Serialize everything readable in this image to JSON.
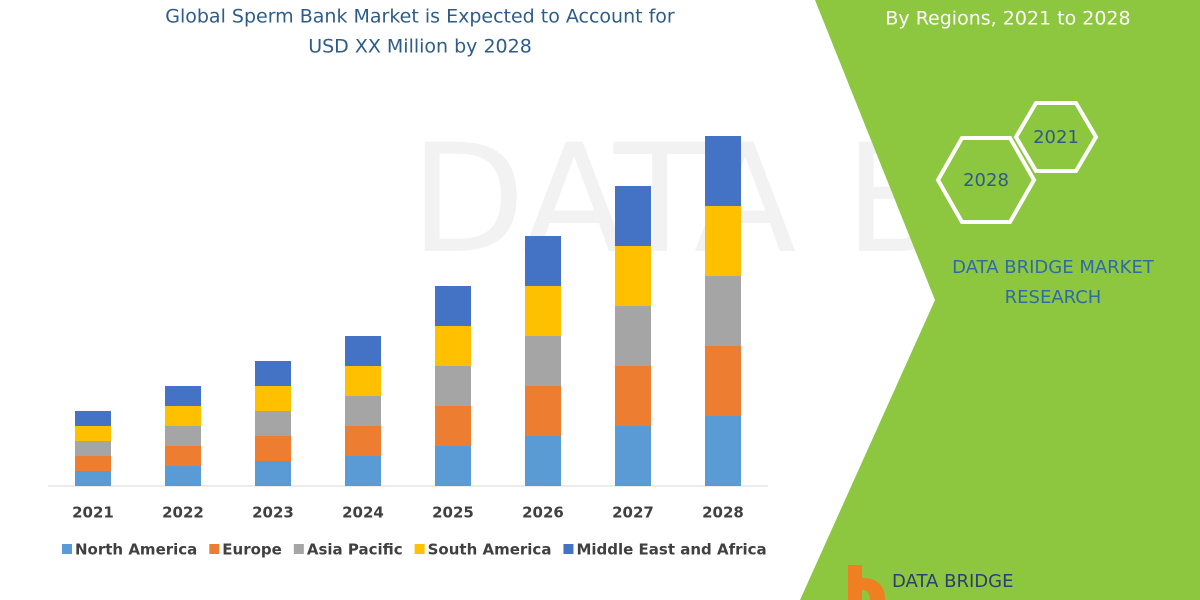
{
  "chart_data": {
    "type": "stacked_bar",
    "title": [
      "Global Sperm Bank Market is Expected to Account for",
      "USD XX Million by 2028"
    ],
    "categories": [
      "2021",
      "2022",
      "2023",
      "2024",
      "2025",
      "2026",
      "2027",
      "2028"
    ],
    "series": [
      {
        "name": "North America",
        "color": "#5b9bd5",
        "values": [
          15,
          20,
          25,
          30,
          40,
          50,
          60,
          70
        ]
      },
      {
        "name": "Europe",
        "color": "#ed7d31",
        "values": [
          15,
          20,
          25,
          30,
          40,
          50,
          60,
          70
        ]
      },
      {
        "name": "Asia Pacific",
        "color": "#a5a5a5",
        "values": [
          15,
          20,
          25,
          30,
          40,
          50,
          60,
          70
        ]
      },
      {
        "name": "South America",
        "color": "#ffc000",
        "values": [
          15,
          20,
          25,
          30,
          40,
          50,
          60,
          70
        ]
      },
      {
        "name": "Middle East and Africa",
        "color": "#4472c4",
        "values": [
          15,
          20,
          25,
          30,
          40,
          50,
          60,
          70
        ]
      }
    ],
    "ylim": [
      0,
      400
    ]
  },
  "panel": {
    "subtitle": "By Regions, 2021 to 2028",
    "hexagons": [
      "2021",
      "2028"
    ],
    "brand": [
      "DATA BRIDGE MARKET",
      "RESEARCH"
    ],
    "logo": "DATA BRIDGE"
  }
}
